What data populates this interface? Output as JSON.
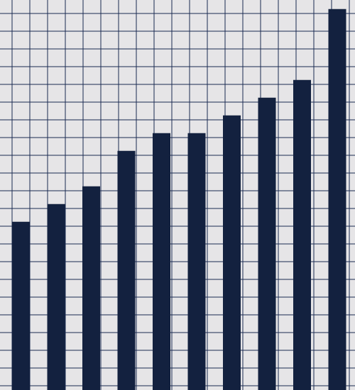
{
  "chart_data": {
    "type": "bar",
    "values": [
      9.25,
      10.25,
      11.25,
      13.25,
      14.25,
      14.25,
      15.25,
      16.25,
      17.25,
      21.25
    ],
    "title": "",
    "xlabel": "",
    "ylabel": "",
    "ylim": [
      0,
      22
    ],
    "grid": true,
    "legend": "none"
  },
  "colors": {
    "background": "#e6e5e7",
    "grid": "#1a2a52",
    "bar": "#13213f"
  }
}
